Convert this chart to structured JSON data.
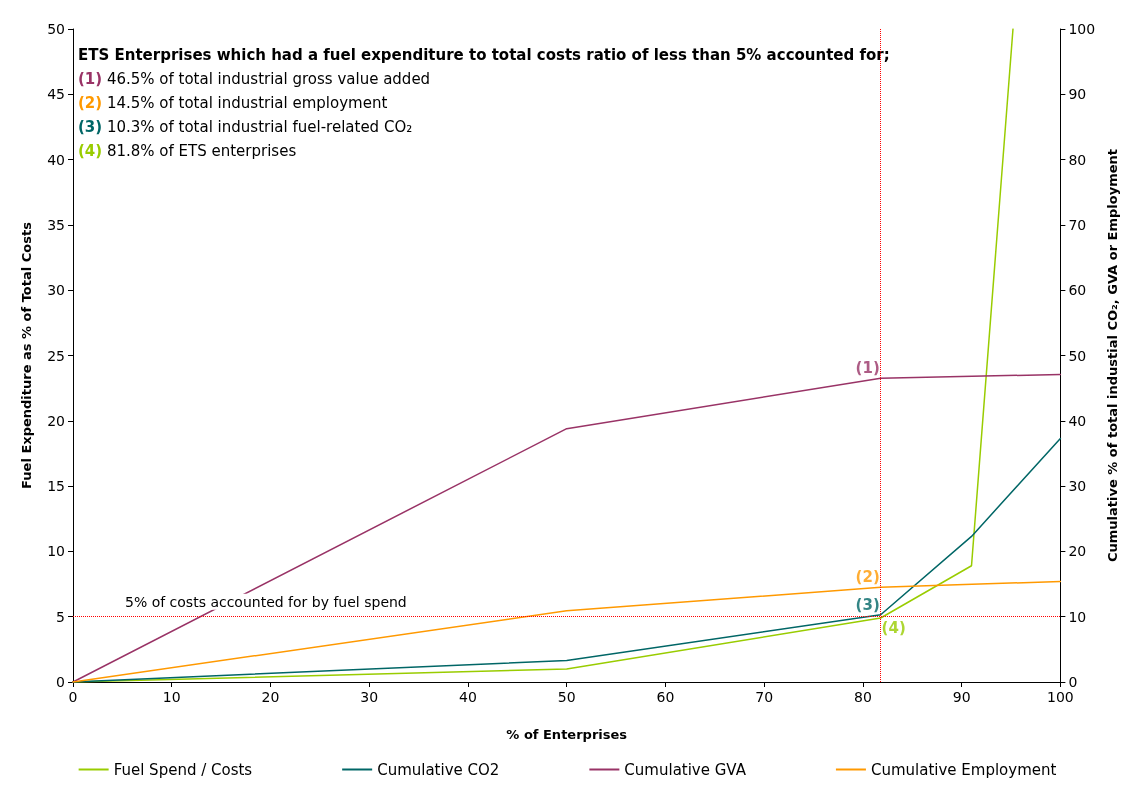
{
  "chart_data": {
    "type": "line",
    "xlabel": "% of Enterprises",
    "ylabel": "Fuel Expenditure as % of Total Costs",
    "y2label": "Cumulative % of total industial CO₂, GVA or Employment",
    "series": [
      {
        "name": "Fuel Spend / Costs",
        "color": "#99cc00",
        "x": [
          0,
          50,
          81.8,
          91,
          95.2
        ],
        "values": [
          0,
          1.0,
          4.9,
          8.9,
          50
        ]
      },
      {
        "name": "Cumulative CO2",
        "color": "#006666",
        "axis": "y2",
        "x": [
          0,
          50,
          81.8,
          91,
          100
        ],
        "values": [
          0,
          3.3,
          10.3,
          22.3,
          37.3
        ]
      },
      {
        "name": "Cumulative GVA",
        "color": "#993366",
        "axis": "y2",
        "x": [
          0,
          50,
          81.8,
          100
        ],
        "values": [
          0,
          38.8,
          46.5,
          47.1
        ]
      },
      {
        "name": "Cumulative Employment",
        "color": "#ff9900",
        "axis": "y2",
        "x": [
          0,
          50,
          81.8,
          100
        ],
        "values": [
          0,
          10.9,
          14.5,
          15.4
        ]
      }
    ],
    "xlim": [
      0,
      100
    ],
    "xticks": [
      0,
      10,
      20,
      30,
      40,
      50,
      60,
      70,
      80,
      90,
      100
    ],
    "ylim": [
      0,
      50
    ],
    "yticks": [
      0,
      5,
      10,
      15,
      20,
      25,
      30,
      35,
      40,
      45,
      50
    ],
    "y2lim": [
      0,
      100
    ],
    "y2ticks": [
      0,
      10,
      20,
      30,
      40,
      50,
      60,
      70,
      80,
      90,
      100
    ],
    "ref_lines": [
      {
        "axis": "x",
        "value": 81.8,
        "color": "#ff0000",
        "line_style": "dotted"
      },
      {
        "axis": "y",
        "value": 5,
        "color": "#ff0000",
        "line_style": "dotted",
        "label": "5% of costs accounted for by fuel spend"
      }
    ],
    "annotations": [
      "ETS Enterprises which had a fuel expenditure to total costs ratio of less than 5% accounted for;",
      "(1) 46.5% of total industrial gross value added",
      "(2) 14.5% of total industrial employment",
      "(3) 10.3% of total industrial fuel-related CO₂",
      "(4) 81.8% of ETS enterprises",
      "(1)",
      "(2)",
      "(3)",
      "(4)"
    ],
    "grid": false,
    "legend": "bottom",
    "marker": "none",
    "line_style": "solid"
  }
}
